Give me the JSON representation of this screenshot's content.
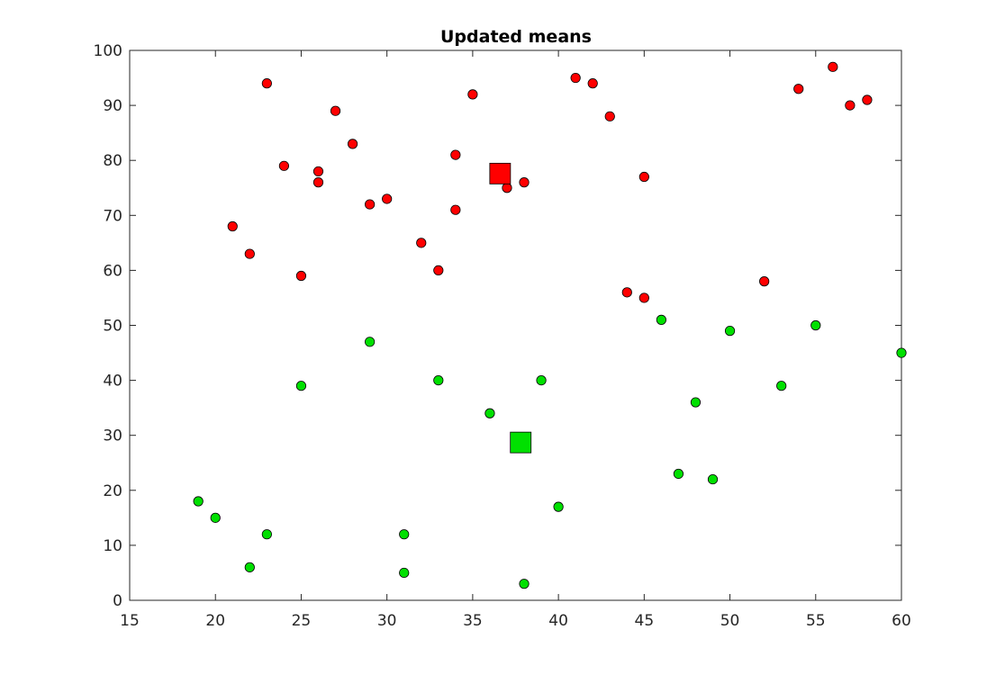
{
  "chart_data": {
    "type": "scatter",
    "title": "Updated means",
    "xlabel": "",
    "ylabel": "",
    "xlim": [
      15,
      60
    ],
    "ylim": [
      0,
      100
    ],
    "xticks": [
      15,
      20,
      25,
      30,
      35,
      40,
      45,
      50,
      55,
      60
    ],
    "yticks": [
      0,
      10,
      20,
      30,
      40,
      50,
      60,
      70,
      80,
      90,
      100
    ],
    "grid": false,
    "colors": {
      "red": "#ff0000",
      "green": "#00e000"
    },
    "series": [
      {
        "color": "red",
        "marker": "circle",
        "x": [
          23,
          27,
          35,
          41,
          42,
          43,
          56,
          54,
          57,
          58,
          24,
          28,
          26,
          26,
          34,
          37,
          38,
          45,
          29,
          30,
          34,
          21,
          22,
          25,
          32,
          33,
          44,
          45,
          52
        ],
        "y": [
          94,
          89,
          92,
          95,
          94,
          88,
          97,
          93,
          90,
          91,
          79,
          83,
          78,
          76,
          81,
          75,
          76,
          77,
          72,
          73,
          71,
          68,
          63,
          59,
          65,
          60,
          56,
          55,
          58
        ]
      },
      {
        "color": "green",
        "marker": "circle",
        "x": [
          46,
          50,
          55,
          29,
          25,
          33,
          39,
          36,
          48,
          53,
          60,
          47,
          49,
          19,
          20,
          23,
          22,
          31,
          31,
          38,
          40
        ],
        "y": [
          51,
          49,
          50,
          47,
          39,
          40,
          40,
          34,
          36,
          39,
          45,
          23,
          22,
          18,
          15,
          12,
          6,
          12,
          5,
          3,
          17
        ]
      }
    ],
    "means": [
      {
        "color": "red",
        "marker": "square",
        "x": 36.6,
        "y": 77.6
      },
      {
        "color": "green",
        "marker": "square",
        "x": 37.8,
        "y": 28.7
      }
    ]
  }
}
